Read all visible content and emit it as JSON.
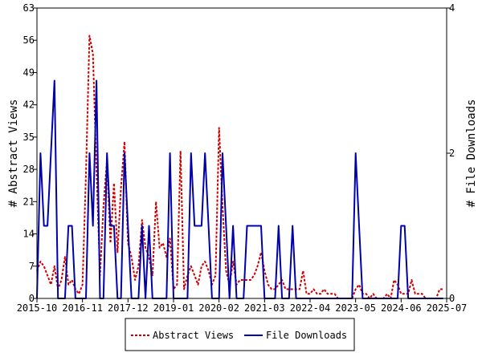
{
  "chart_data": {
    "type": "line",
    "title": "",
    "ylabel": "# Abstract Views",
    "y2label": "# File Downloads",
    "ylim": [
      0,
      63
    ],
    "y2lim": [
      0,
      4
    ],
    "yticks": [
      0,
      7,
      14,
      21,
      28,
      35,
      42,
      49,
      56,
      63
    ],
    "y2ticks": [
      0,
      2,
      4
    ],
    "xlim": [
      "2015-10",
      "2025-07"
    ],
    "xticks": [
      "2015-10",
      "2016-11",
      "2017-12",
      "2019-01",
      "2020-02",
      "2021-03",
      "2022-04",
      "2023-05",
      "2024-06",
      "2025-07"
    ],
    "grid": false,
    "legend_position": "bottom-center",
    "series": [
      {
        "name": "Abstract Views",
        "axis": "left",
        "color": "#cc0000",
        "style": "dashed",
        "points": [
          [
            "2015-10",
            6
          ],
          [
            "2015-11",
            8
          ],
          [
            "2015-12",
            7
          ],
          [
            "2016-01",
            5
          ],
          [
            "2016-02",
            3
          ],
          [
            "2016-03",
            7
          ],
          [
            "2016-04",
            2
          ],
          [
            "2016-05",
            4
          ],
          [
            "2016-06",
            9
          ],
          [
            "2016-07",
            3
          ],
          [
            "2016-08",
            4
          ],
          [
            "2016-09",
            2
          ],
          [
            "2016-10",
            1
          ],
          [
            "2016-11",
            3
          ],
          [
            "2016-12",
            27
          ],
          [
            "2017-01",
            57
          ],
          [
            "2017-02",
            53
          ],
          [
            "2017-03",
            28
          ],
          [
            "2017-04",
            5
          ],
          [
            "2017-05",
            20
          ],
          [
            "2017-06",
            30
          ],
          [
            "2017-07",
            12
          ],
          [
            "2017-08",
            25
          ],
          [
            "2017-09",
            10
          ],
          [
            "2017-10",
            24
          ],
          [
            "2017-11",
            34
          ],
          [
            "2017-12",
            12
          ],
          [
            "2018-01",
            9
          ],
          [
            "2018-02",
            4
          ],
          [
            "2018-03",
            7
          ],
          [
            "2018-04",
            17
          ],
          [
            "2018-05",
            11
          ],
          [
            "2018-06",
            9
          ],
          [
            "2018-07",
            5
          ],
          [
            "2018-08",
            21
          ],
          [
            "2018-09",
            11
          ],
          [
            "2018-10",
            12
          ],
          [
            "2018-11",
            9
          ],
          [
            "2018-12",
            13
          ],
          [
            "2019-01",
            2
          ],
          [
            "2019-02",
            3
          ],
          [
            "2019-03",
            32
          ],
          [
            "2019-04",
            2
          ],
          [
            "2019-05",
            5
          ],
          [
            "2019-06",
            7
          ],
          [
            "2019-07",
            5
          ],
          [
            "2019-08",
            3
          ],
          [
            "2019-09",
            7
          ],
          [
            "2019-10",
            8
          ],
          [
            "2019-11",
            6
          ],
          [
            "2019-12",
            3
          ],
          [
            "2020-01",
            5
          ],
          [
            "2020-02",
            37
          ],
          [
            "2020-03",
            20
          ],
          [
            "2020-04",
            6
          ],
          [
            "2020-05",
            3
          ],
          [
            "2020-06",
            8
          ],
          [
            "2020-07",
            3
          ],
          [
            "2020-08",
            4
          ],
          [
            "2020-09",
            4
          ],
          [
            "2020-10",
            4
          ],
          [
            "2020-11",
            4
          ],
          [
            "2020-12",
            5
          ],
          [
            "2021-01",
            7
          ],
          [
            "2021-02",
            10
          ],
          [
            "2021-03",
            6
          ],
          [
            "2021-04",
            3
          ],
          [
            "2021-05",
            2
          ],
          [
            "2021-06",
            2
          ],
          [
            "2021-07",
            3
          ],
          [
            "2021-08",
            4
          ],
          [
            "2021-09",
            2
          ],
          [
            "2021-10",
            2
          ],
          [
            "2021-11",
            2
          ],
          [
            "2021-12",
            2
          ],
          [
            "2022-01",
            2
          ],
          [
            "2022-02",
            6
          ],
          [
            "2022-03",
            1
          ],
          [
            "2022-04",
            1
          ],
          [
            "2022-05",
            2
          ],
          [
            "2022-06",
            1
          ],
          [
            "2022-07",
            1
          ],
          [
            "2022-08",
            2
          ],
          [
            "2022-09",
            1
          ],
          [
            "2022-10",
            1
          ],
          [
            "2022-11",
            1
          ],
          [
            "2022-12",
            0
          ],
          [
            "2023-01",
            0
          ],
          [
            "2023-02",
            0
          ],
          [
            "2023-03",
            0
          ],
          [
            "2023-04",
            0
          ],
          [
            "2023-05",
            2
          ],
          [
            "2023-06",
            3
          ],
          [
            "2023-07",
            1
          ],
          [
            "2023-08",
            1
          ],
          [
            "2023-09",
            0
          ],
          [
            "2023-10",
            1
          ],
          [
            "2023-11",
            0
          ],
          [
            "2023-12",
            0
          ],
          [
            "2024-01",
            0
          ],
          [
            "2024-02",
            1
          ],
          [
            "2024-03",
            0
          ],
          [
            "2024-04",
            4
          ],
          [
            "2024-05",
            3
          ],
          [
            "2024-06",
            1
          ],
          [
            "2024-07",
            1
          ],
          [
            "2024-08",
            1
          ],
          [
            "2024-09",
            4
          ],
          [
            "2024-10",
            1
          ],
          [
            "2024-11",
            1
          ],
          [
            "2024-12",
            1
          ],
          [
            "2025-01",
            0
          ],
          [
            "2025-02",
            0
          ],
          [
            "2025-03",
            0
          ],
          [
            "2025-04",
            0
          ],
          [
            "2025-05",
            2
          ],
          [
            "2025-06",
            2
          ]
        ]
      },
      {
        "name": "File Downloads",
        "axis": "right",
        "color": "#0000aa",
        "style": "solid",
        "points": [
          [
            "2015-10",
            0
          ],
          [
            "2015-11",
            2
          ],
          [
            "2015-12",
            1
          ],
          [
            "2016-01",
            1
          ],
          [
            "2016-02",
            2
          ],
          [
            "2016-03",
            3
          ],
          [
            "2016-04",
            0
          ],
          [
            "2016-05",
            0
          ],
          [
            "2016-06",
            0
          ],
          [
            "2016-07",
            1
          ],
          [
            "2016-08",
            1
          ],
          [
            "2016-09",
            0
          ],
          [
            "2016-10",
            0
          ],
          [
            "2016-11",
            0
          ],
          [
            "2016-12",
            0
          ],
          [
            "2017-01",
            2
          ],
          [
            "2017-02",
            1
          ],
          [
            "2017-03",
            3
          ],
          [
            "2017-04",
            0
          ],
          [
            "2017-05",
            0
          ],
          [
            "2017-06",
            2
          ],
          [
            "2017-07",
            1
          ],
          [
            "2017-08",
            1
          ],
          [
            "2017-09",
            0
          ],
          [
            "2017-10",
            0
          ],
          [
            "2017-11",
            2
          ],
          [
            "2017-12",
            1
          ],
          [
            "2018-01",
            0
          ],
          [
            "2018-02",
            0
          ],
          [
            "2018-03",
            0
          ],
          [
            "2018-04",
            1
          ],
          [
            "2018-05",
            0
          ],
          [
            "2018-06",
            1
          ],
          [
            "2018-07",
            0
          ],
          [
            "2018-08",
            0
          ],
          [
            "2018-09",
            0
          ],
          [
            "2018-10",
            0
          ],
          [
            "2018-11",
            0
          ],
          [
            "2018-12",
            2
          ],
          [
            "2019-01",
            0
          ],
          [
            "2019-02",
            0
          ],
          [
            "2019-03",
            0
          ],
          [
            "2019-04",
            0
          ],
          [
            "2019-05",
            0
          ],
          [
            "2019-06",
            2
          ],
          [
            "2019-07",
            1
          ],
          [
            "2019-08",
            1
          ],
          [
            "2019-09",
            1
          ],
          [
            "2019-10",
            2
          ],
          [
            "2019-11",
            1
          ],
          [
            "2019-12",
            0
          ],
          [
            "2020-01",
            0
          ],
          [
            "2020-02",
            0
          ],
          [
            "2020-03",
            2
          ],
          [
            "2020-04",
            1
          ],
          [
            "2020-05",
            0
          ],
          [
            "2020-06",
            1
          ],
          [
            "2020-07",
            0
          ],
          [
            "2020-08",
            0
          ],
          [
            "2020-09",
            0
          ],
          [
            "2020-10",
            1
          ],
          [
            "2020-11",
            1
          ],
          [
            "2020-12",
            1
          ],
          [
            "2021-01",
            1
          ],
          [
            "2021-02",
            1
          ],
          [
            "2021-03",
            0
          ],
          [
            "2021-04",
            0
          ],
          [
            "2021-05",
            0
          ],
          [
            "2021-06",
            0
          ],
          [
            "2021-07",
            1
          ],
          [
            "2021-08",
            0
          ],
          [
            "2021-09",
            0
          ],
          [
            "2021-10",
            0
          ],
          [
            "2021-11",
            1
          ],
          [
            "2021-12",
            0
          ],
          [
            "2022-01",
            0
          ],
          [
            "2022-02",
            0
          ],
          [
            "2022-03",
            0
          ],
          [
            "2022-04",
            0
          ],
          [
            "2022-05",
            0
          ],
          [
            "2022-06",
            0
          ],
          [
            "2022-07",
            0
          ],
          [
            "2022-08",
            0
          ],
          [
            "2022-09",
            0
          ],
          [
            "2022-10",
            0
          ],
          [
            "2022-11",
            0
          ],
          [
            "2022-12",
            0
          ],
          [
            "2023-01",
            0
          ],
          [
            "2023-02",
            0
          ],
          [
            "2023-03",
            0
          ],
          [
            "2023-04",
            0
          ],
          [
            "2023-05",
            2
          ],
          [
            "2023-06",
            1
          ],
          [
            "2023-07",
            0
          ],
          [
            "2023-08",
            0
          ],
          [
            "2023-09",
            0
          ],
          [
            "2023-10",
            0
          ],
          [
            "2023-11",
            0
          ],
          [
            "2023-12",
            0
          ],
          [
            "2024-01",
            0
          ],
          [
            "2024-02",
            0
          ],
          [
            "2024-03",
            0
          ],
          [
            "2024-04",
            0
          ],
          [
            "2024-05",
            0
          ],
          [
            "2024-06",
            1
          ],
          [
            "2024-07",
            1
          ],
          [
            "2024-08",
            0
          ],
          [
            "2024-09",
            0
          ],
          [
            "2024-10",
            0
          ],
          [
            "2024-11",
            0
          ],
          [
            "2024-12",
            0
          ],
          [
            "2025-01",
            0
          ],
          [
            "2025-02",
            0
          ],
          [
            "2025-03",
            0
          ],
          [
            "2025-04",
            0
          ],
          [
            "2025-05",
            0
          ],
          [
            "2025-06",
            0
          ]
        ]
      }
    ]
  }
}
